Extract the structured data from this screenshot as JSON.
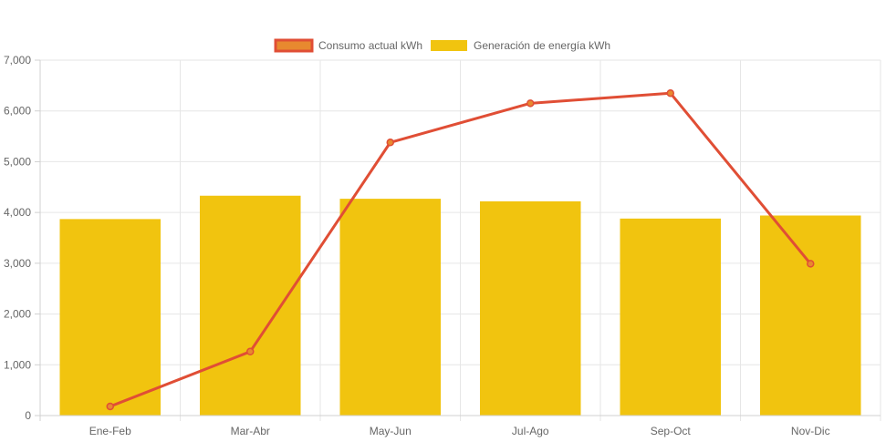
{
  "chart_data": {
    "type": "bar",
    "title": "",
    "xlabel": "",
    "ylabel": "",
    "categories": [
      "Ene-Feb",
      "Mar-Abr",
      "May-Jun",
      "Jul-Ago",
      "Sep-Oct",
      "Nov-Dic"
    ],
    "ylim": [
      0,
      7000
    ],
    "yticks": [
      0,
      1000,
      2000,
      3000,
      4000,
      5000,
      6000,
      7000
    ],
    "ytick_labels": [
      "0",
      "1,000",
      "2,000",
      "3,000",
      "4,000",
      "5,000",
      "6,000",
      "7,000"
    ],
    "grid": true,
    "legend_position": "top-center",
    "series": [
      {
        "name": "Consumo actual kWh",
        "type": "line",
        "values": [
          180,
          1260,
          5380,
          6150,
          6350,
          2990
        ],
        "color": "#e04e35",
        "fill_color": "#e8892f"
      },
      {
        "name": "Generación de energía kWh",
        "type": "bar",
        "values": [
          3870,
          4330,
          4270,
          4220,
          3880,
          3940
        ],
        "color": "#f1c40f"
      }
    ]
  }
}
